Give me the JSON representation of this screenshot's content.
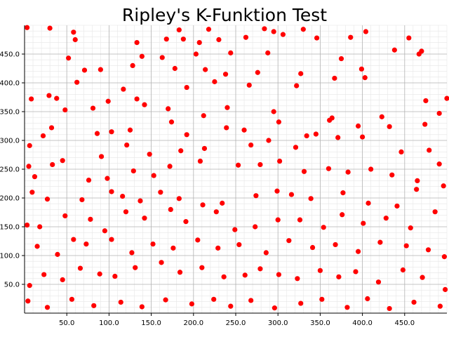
{
  "chart_data": {
    "type": "scatter",
    "title": "Ripley's K-Funktion Test",
    "xlabel": "",
    "ylabel": "",
    "xlim": [
      0,
      500
    ],
    "ylim": [
      0,
      500
    ],
    "grid": true,
    "point_color": "#ff0000",
    "x_ticks": [
      50,
      100,
      150,
      200,
      250,
      300,
      350,
      400,
      450
    ],
    "x_tick_labels": [
      "50.0",
      "100.0",
      "150.0",
      "200.0",
      "250.0",
      "300.0",
      "350.0",
      "400.0",
      "450.0"
    ],
    "y_ticks": [
      50,
      100,
      150,
      200,
      250,
      300,
      350,
      400,
      450
    ],
    "y_tick_labels": [
      "50.0",
      "100.0",
      "150.0",
      "200.0",
      "250.0",
      "300.0",
      "350.0",
      "400.0",
      "450.0"
    ],
    "points": [
      [
        3,
        496
      ],
      [
        30,
        495
      ],
      [
        58,
        488
      ],
      [
        183,
        492
      ],
      [
        218,
        493
      ],
      [
        284,
        494
      ],
      [
        295,
        489
      ],
      [
        330,
        493
      ],
      [
        404,
        489
      ],
      [
        455,
        478
      ],
      [
        60,
        475
      ],
      [
        133,
        470
      ],
      [
        168,
        476
      ],
      [
        188,
        476
      ],
      [
        207,
        470
      ],
      [
        230,
        475
      ],
      [
        262,
        479
      ],
      [
        306,
        484
      ],
      [
        346,
        478
      ],
      [
        386,
        479
      ],
      [
        438,
        457
      ],
      [
        467,
        450
      ],
      [
        52,
        443
      ],
      [
        139,
        446
      ],
      [
        163,
        444
      ],
      [
        203,
        450
      ],
      [
        244,
        452
      ],
      [
        288,
        452
      ],
      [
        375,
        442
      ],
      [
        470,
        455
      ],
      [
        71,
        422
      ],
      [
        90,
        423
      ],
      [
        128,
        430
      ],
      [
        178,
        425
      ],
      [
        214,
        423
      ],
      [
        238,
        415
      ],
      [
        276,
        418
      ],
      [
        327,
        416
      ],
      [
        367,
        408
      ],
      [
        399,
        424
      ],
      [
        29,
        378
      ],
      [
        38,
        373
      ],
      [
        62,
        401
      ],
      [
        117,
        389
      ],
      [
        142,
        362
      ],
      [
        192,
        392
      ],
      [
        225,
        402
      ],
      [
        266,
        396
      ],
      [
        322,
        395
      ],
      [
        403,
        409
      ],
      [
        8,
        372
      ],
      [
        48,
        353
      ],
      [
        81,
        356
      ],
      [
        99,
        368
      ],
      [
        133,
        372
      ],
      [
        170,
        355
      ],
      [
        212,
        343
      ],
      [
        240,
        357
      ],
      [
        295,
        350
      ],
      [
        364,
        339
      ],
      [
        423,
        341
      ],
      [
        475,
        369
      ],
      [
        491,
        347
      ],
      [
        500,
        373
      ],
      [
        32,
        322
      ],
      [
        86,
        312
      ],
      [
        103,
        315
      ],
      [
        125,
        318
      ],
      [
        174,
        332
      ],
      [
        192,
        310
      ],
      [
        239,
        322
      ],
      [
        260,
        318
      ],
      [
        301,
        332
      ],
      [
        334,
        308
      ],
      [
        361,
        335
      ],
      [
        395,
        325
      ],
      [
        432,
        324
      ],
      [
        474,
        328
      ],
      [
        6,
        291
      ],
      [
        22,
        308
      ],
      [
        45,
        265
      ],
      [
        91,
        272
      ],
      [
        121,
        292
      ],
      [
        148,
        276
      ],
      [
        185,
        282
      ],
      [
        213,
        286
      ],
      [
        268,
        292
      ],
      [
        289,
        300
      ],
      [
        321,
        288
      ],
      [
        345,
        311
      ],
      [
        371,
        305
      ],
      [
        400,
        306
      ],
      [
        446,
        280
      ],
      [
        479,
        283
      ],
      [
        5,
        255
      ],
      [
        12,
        237
      ],
      [
        33,
        258
      ],
      [
        76,
        231
      ],
      [
        98,
        234
      ],
      [
        129,
        247
      ],
      [
        153,
        239
      ],
      [
        172,
        255
      ],
      [
        208,
        264
      ],
      [
        253,
        257
      ],
      [
        279,
        258
      ],
      [
        302,
        264
      ],
      [
        331,
        246
      ],
      [
        360,
        251
      ],
      [
        383,
        245
      ],
      [
        410,
        250
      ],
      [
        435,
        240
      ],
      [
        465,
        230
      ],
      [
        491,
        259
      ],
      [
        9,
        210
      ],
      [
        27,
        198
      ],
      [
        68,
        197
      ],
      [
        103,
        211
      ],
      [
        116,
        203
      ],
      [
        137,
        195
      ],
      [
        161,
        210
      ],
      [
        183,
        199
      ],
      [
        211,
        188
      ],
      [
        234,
        191
      ],
      [
        274,
        204
      ],
      [
        299,
        212
      ],
      [
        316,
        206
      ],
      [
        339,
        199
      ],
      [
        377,
        209
      ],
      [
        407,
        191
      ],
      [
        441,
        186
      ],
      [
        464,
        215
      ],
      [
        496,
        221
      ],
      [
        3,
        153
      ],
      [
        18,
        150
      ],
      [
        48,
        169
      ],
      [
        78,
        163
      ],
      [
        95,
        143
      ],
      [
        120,
        176
      ],
      [
        142,
        165
      ],
      [
        173,
        180
      ],
      [
        191,
        159
      ],
      [
        227,
        176
      ],
      [
        249,
        145
      ],
      [
        273,
        150
      ],
      [
        300,
        162
      ],
      [
        326,
        162
      ],
      [
        354,
        149
      ],
      [
        376,
        171
      ],
      [
        401,
        156
      ],
      [
        428,
        165
      ],
      [
        457,
        148
      ],
      [
        486,
        176
      ],
      [
        15,
        116
      ],
      [
        39,
        102
      ],
      [
        58,
        128
      ],
      [
        73,
        120
      ],
      [
        103,
        128
      ],
      [
        127,
        105
      ],
      [
        152,
        120
      ],
      [
        176,
        113
      ],
      [
        205,
        127
      ],
      [
        229,
        113
      ],
      [
        254,
        119
      ],
      [
        286,
        105
      ],
      [
        313,
        126
      ],
      [
        341,
        114
      ],
      [
        368,
        119
      ],
      [
        395,
        107
      ],
      [
        421,
        123
      ],
      [
        452,
        117
      ],
      [
        478,
        110
      ],
      [
        497,
        98
      ],
      [
        6,
        48
      ],
      [
        23,
        67
      ],
      [
        45,
        58
      ],
      [
        66,
        78
      ],
      [
        89,
        68
      ],
      [
        107,
        64
      ],
      [
        131,
        79
      ],
      [
        162,
        88
      ],
      [
        184,
        71
      ],
      [
        210,
        79
      ],
      [
        236,
        63
      ],
      [
        261,
        66
      ],
      [
        279,
        77
      ],
      [
        301,
        67
      ],
      [
        323,
        60
      ],
      [
        350,
        74
      ],
      [
        372,
        63
      ],
      [
        392,
        72
      ],
      [
        419,
        54
      ],
      [
        448,
        75
      ],
      [
        471,
        62
      ],
      [
        4,
        21
      ],
      [
        27,
        10
      ],
      [
        56,
        24
      ],
      [
        82,
        13
      ],
      [
        114,
        19
      ],
      [
        139,
        11
      ],
      [
        167,
        23
      ],
      [
        198,
        16
      ],
      [
        224,
        24
      ],
      [
        244,
        12
      ],
      [
        268,
        22
      ],
      [
        296,
        9
      ],
      [
        327,
        17
      ],
      [
        352,
        24
      ],
      [
        382,
        10
      ],
      [
        406,
        25
      ],
      [
        432,
        8
      ],
      [
        461,
        19
      ],
      [
        492,
        12
      ],
      [
        498,
        41
      ]
    ]
  }
}
